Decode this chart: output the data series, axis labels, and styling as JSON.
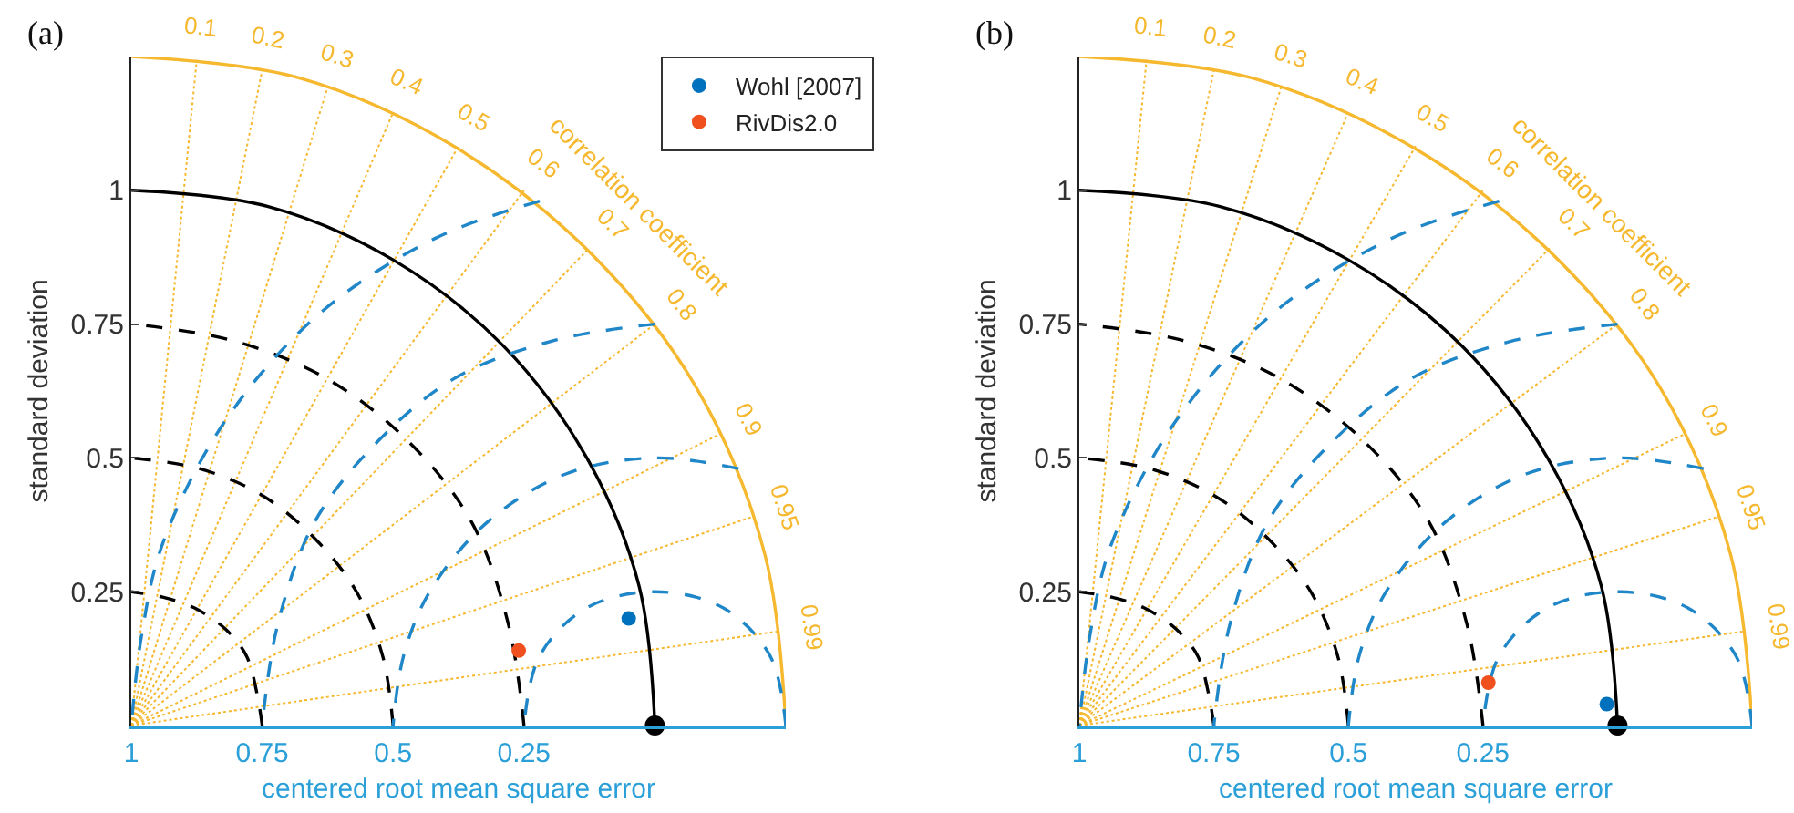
{
  "chart_data": [
    {
      "type": "scatter",
      "title": "(a)",
      "xlabel": "centered root mean square error",
      "ylabel": "standard deviation",
      "x2label": "correlation coefficient",
      "xlim": [
        1,
        -0.25
      ],
      "ylim": [
        0,
        1.25
      ],
      "xticks": [
        1,
        0.75,
        0.5,
        0.25
      ],
      "yticks": [
        0.25,
        0.5,
        0.75,
        1
      ],
      "annotations": [
        "0.1",
        "0.2",
        "0.3",
        "0.4",
        "0.5",
        "0.6",
        "0.7",
        "0.8",
        "0.9",
        "0.95",
        "0.99"
      ],
      "legend": "top right",
      "marker": "circle",
      "series": [
        {
          "type": "line",
          "marker": "none",
          "color": "#000000",
          "line_style": "dashed",
          "x": [
            0.75,
            0.76,
            0.78,
            0.82,
            0.88,
            0.94,
            1
          ],
          "values": [
            0,
            0.06,
            0.13,
            0.18,
            0.22,
            0.24,
            0.25
          ]
        },
        {
          "type": "line",
          "marker": "none",
          "color": "#000000",
          "line_style": "dashed",
          "x": [
            0.5,
            0.52,
            0.57,
            0.65,
            0.75,
            0.87,
            1
          ],
          "values": [
            0,
            0.13,
            0.25,
            0.35,
            0.43,
            0.48,
            0.5
          ]
        },
        {
          "type": "line",
          "marker": "none",
          "color": "#000000",
          "line_style": "dashed",
          "x": [
            0.25,
            0.28,
            0.35,
            0.47,
            0.63,
            0.81,
            1
          ],
          "values": [
            0,
            0.19,
            0.38,
            0.53,
            0.65,
            0.72,
            0.75
          ]
        },
        {
          "type": "line",
          "marker": "none",
          "color": "#000000",
          "line_style": "solid",
          "x": [
            0,
            0.03,
            0.13,
            0.29,
            0.5,
            0.74,
            1
          ],
          "values": [
            0,
            0.26,
            0.5,
            0.71,
            0.87,
            0.97,
            1
          ]
        },
        {
          "type": "line",
          "marker": "none",
          "color": "#f5b82e",
          "line_style": "solid",
          "x": [
            -0.25,
            -0.21,
            -0.08,
            0.12,
            0.38,
            0.68,
            1
          ],
          "values": [
            0,
            0.32,
            0.63,
            0.88,
            1.08,
            1.21,
            1.25
          ]
        },
        {
          "type": "line",
          "marker": "none",
          "color": "#1f86c8",
          "line_style": "dashed",
          "x": [
            -0.25,
            -0.22,
            -0.13,
            0,
            0.13,
            0.22,
            0.25
          ],
          "values": [
            0,
            0.13,
            0.22,
            0.25,
            0.22,
            0.13,
            0
          ]
        },
        {
          "type": "line",
          "marker": "none",
          "color": "#1f86c8",
          "line_style": "dashed",
          "x": [
            -0.16,
            0,
            0.17,
            0.32,
            0.43,
            0.48,
            0.5
          ],
          "values": [
            0.48,
            0.5,
            0.47,
            0.38,
            0.25,
            0.13,
            0
          ]
        },
        {
          "type": "line",
          "marker": "none",
          "color": "#1f86c8",
          "line_style": "dashed",
          "x": [
            0,
            0.19,
            0.38,
            0.53,
            0.65,
            0.72,
            0.75
          ],
          "values": [
            0.75,
            0.72,
            0.65,
            0.53,
            0.38,
            0.19,
            0
          ]
        },
        {
          "type": "line",
          "marker": "none",
          "color": "#1f86c8",
          "line_style": "dashed",
          "x": [
            0.22,
            0.42,
            0.64,
            0.82,
            0.94,
            0.98,
            1
          ],
          "values": [
            0.98,
            0.91,
            0.77,
            0.57,
            0.34,
            0.17,
            0
          ]
        },
        {
          "name": "Wohl [2007]",
          "color": "#0072bd",
          "x": [
            0.05
          ],
          "values": [
            0.2
          ]
        },
        {
          "name": "RivDis2.0",
          "color": "#f0501e",
          "x": [
            0.26
          ],
          "values": [
            0.14
          ]
        },
        {
          "color": "#000000",
          "x": [
            0
          ],
          "values": [
            0
          ]
        }
      ]
    },
    {
      "type": "scatter",
      "title": "(b)",
      "xlabel": "centered root mean square error",
      "ylabel": "standard deviation",
      "x2label": "correlation coefficient",
      "xlim": [
        1,
        -0.25
      ],
      "ylim": [
        0,
        1.25
      ],
      "xticks": [
        1,
        0.75,
        0.5,
        0.25
      ],
      "yticks": [
        0.25,
        0.5,
        0.75,
        1
      ],
      "annotations": [
        "0.1",
        "0.2",
        "0.3",
        "0.4",
        "0.5",
        "0.6",
        "0.7",
        "0.8",
        "0.9",
        "0.95",
        "0.99"
      ],
      "marker": "circle",
      "series": [
        {
          "type": "line",
          "marker": "none",
          "color": "#000000",
          "line_style": "dashed",
          "x": [
            0.75,
            0.76,
            0.78,
            0.82,
            0.88,
            0.94,
            1
          ],
          "values": [
            0,
            0.06,
            0.13,
            0.18,
            0.22,
            0.24,
            0.25
          ]
        },
        {
          "type": "line",
          "marker": "none",
          "color": "#000000",
          "line_style": "dashed",
          "x": [
            0.5,
            0.52,
            0.57,
            0.65,
            0.75,
            0.87,
            1
          ],
          "values": [
            0,
            0.13,
            0.25,
            0.35,
            0.43,
            0.48,
            0.5
          ]
        },
        {
          "type": "line",
          "marker": "none",
          "color": "#000000",
          "line_style": "dashed",
          "x": [
            0.25,
            0.28,
            0.35,
            0.47,
            0.63,
            0.81,
            1
          ],
          "values": [
            0,
            0.19,
            0.38,
            0.53,
            0.65,
            0.72,
            0.75
          ]
        },
        {
          "type": "line",
          "marker": "none",
          "color": "#000000",
          "line_style": "solid",
          "x": [
            0,
            0.03,
            0.13,
            0.29,
            0.5,
            0.74,
            1
          ],
          "values": [
            0,
            0.26,
            0.5,
            0.71,
            0.87,
            0.97,
            1
          ]
        },
        {
          "type": "line",
          "marker": "none",
          "color": "#f5b82e",
          "line_style": "solid",
          "x": [
            -0.25,
            -0.21,
            -0.08,
            0.12,
            0.38,
            0.68,
            1
          ],
          "values": [
            0,
            0.32,
            0.63,
            0.88,
            1.08,
            1.21,
            1.25
          ]
        },
        {
          "type": "line",
          "marker": "none",
          "color": "#1f86c8",
          "line_style": "dashed",
          "x": [
            -0.25,
            -0.22,
            -0.13,
            0,
            0.13,
            0.22,
            0.25
          ],
          "values": [
            0,
            0.13,
            0.22,
            0.25,
            0.22,
            0.13,
            0
          ]
        },
        {
          "type": "line",
          "marker": "none",
          "color": "#1f86c8",
          "line_style": "dashed",
          "x": [
            -0.16,
            0,
            0.17,
            0.32,
            0.43,
            0.48,
            0.5
          ],
          "values": [
            0.48,
            0.5,
            0.47,
            0.38,
            0.25,
            0.13,
            0
          ]
        },
        {
          "type": "line",
          "marker": "none",
          "color": "#1f86c8",
          "line_style": "dashed",
          "x": [
            0,
            0.19,
            0.38,
            0.53,
            0.65,
            0.72,
            0.75
          ],
          "values": [
            0.75,
            0.72,
            0.65,
            0.53,
            0.38,
            0.19,
            0
          ]
        },
        {
          "type": "line",
          "marker": "none",
          "color": "#1f86c8",
          "line_style": "dashed",
          "x": [
            0.22,
            0.42,
            0.64,
            0.82,
            0.94,
            0.98,
            1
          ],
          "values": [
            0.98,
            0.91,
            0.77,
            0.57,
            0.34,
            0.17,
            0
          ]
        },
        {
          "color": "#0072bd",
          "x": [
            0.02
          ],
          "values": [
            0.04
          ]
        },
        {
          "color": "#f0501e",
          "x": [
            0.24
          ],
          "values": [
            0.08
          ]
        },
        {
          "color": "#000000",
          "x": [
            0
          ],
          "values": [
            0
          ]
        }
      ]
    }
  ]
}
